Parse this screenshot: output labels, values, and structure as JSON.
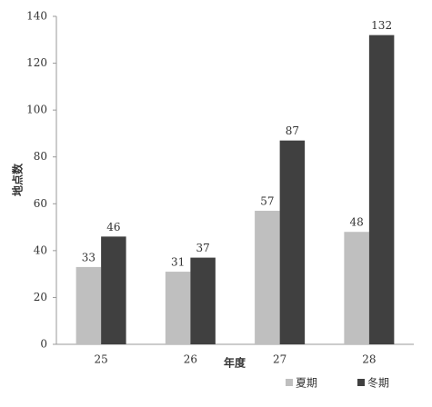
{
  "chart_data": {
    "type": "bar",
    "x_label": "年度",
    "y_label": "地点数",
    "categories": [
      "25",
      "26",
      "27",
      "28"
    ],
    "series": [
      {
        "name": "夏期",
        "color": "#bfbfbf",
        "values": [
          33,
          31,
          57,
          48
        ]
      },
      {
        "name": "冬期",
        "color": "#404040",
        "values": [
          46,
          37,
          87,
          132
        ]
      }
    ],
    "ylim": [
      0,
      140
    ],
    "yticks": [
      0,
      20,
      40,
      60,
      80,
      100,
      120,
      140
    ],
    "legend": "bottom-right"
  }
}
